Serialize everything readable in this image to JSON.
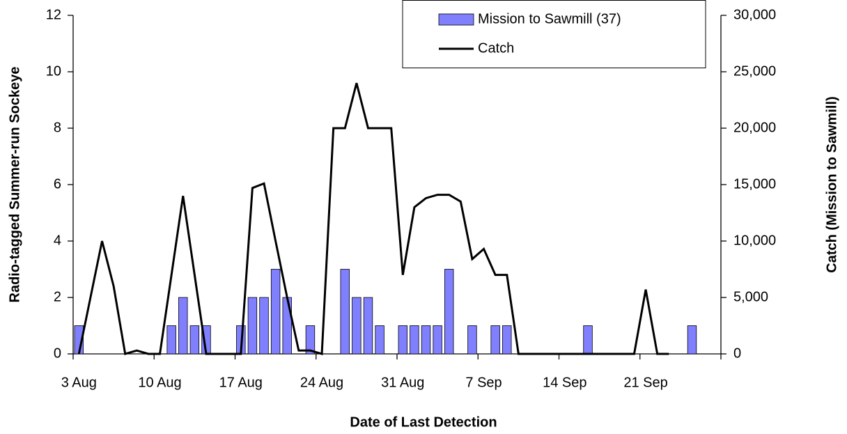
{
  "chart_data": {
    "type": "bar",
    "x_label": "Date of Last Detection",
    "y_label": "Radio-tagged Summer-run Sockeye",
    "y2_label": "Catch (Mission to Sawmill)",
    "categories": [
      "3 Aug",
      null,
      null,
      null,
      null,
      null,
      null,
      "10 Aug",
      null,
      null,
      null,
      null,
      null,
      null,
      "17 Aug",
      null,
      null,
      null,
      null,
      null,
      null,
      "24 Aug",
      null,
      null,
      null,
      null,
      null,
      null,
      "31 Aug",
      null,
      null,
      null,
      null,
      null,
      null,
      "7 Sep",
      null,
      null,
      null,
      null,
      null,
      null,
      "14 Sep",
      null,
      null,
      null,
      null,
      null,
      null,
      "21 Sep",
      null,
      null,
      null,
      null,
      null,
      null
    ],
    "series": [
      {
        "name": "Mission to Sawmill (37)",
        "type": "bar",
        "color": "#8080ff",
        "values": [
          1,
          0,
          0,
          0,
          0,
          0,
          0,
          0,
          1,
          2,
          1,
          1,
          0,
          0,
          1,
          2,
          2,
          3,
          2,
          0,
          1,
          0,
          0,
          3,
          2,
          2,
          1,
          0,
          1,
          1,
          1,
          1,
          3,
          0,
          1,
          0,
          1,
          1,
          0,
          0,
          0,
          0,
          0,
          0,
          1,
          0,
          0,
          0,
          0,
          0,
          0,
          0,
          0,
          1,
          0,
          0
        ]
      },
      {
        "name": "Catch",
        "type": "line",
        "color": "#000000",
        "axis": "y2",
        "values": [
          0,
          5000,
          10000,
          6000,
          0,
          300,
          0,
          0,
          7000,
          14000,
          7000,
          0,
          0,
          0,
          0,
          14700,
          15100,
          10000,
          5000,
          300,
          300,
          0,
          20000,
          20000,
          24000,
          20000,
          20000,
          20000,
          7000,
          13000,
          13800,
          14100,
          14100,
          13500,
          8400,
          9300,
          7000,
          7000,
          0,
          0,
          0,
          0,
          0,
          0,
          0,
          0,
          0,
          0,
          0,
          5700,
          0,
          0,
          null,
          null,
          null,
          null
        ]
      }
    ],
    "ylim": [
      0,
      12
    ],
    "yticks": [
      0,
      2,
      4,
      6,
      8,
      10,
      12
    ],
    "y2lim": [
      0,
      30000
    ],
    "y2ticks": [
      0,
      {
        "value": 5000,
        "label": "5,000"
      },
      {
        "value": 10000,
        "label": "10,000"
      },
      {
        "value": 15000,
        "label": "15,000"
      },
      {
        "value": 20000,
        "label": "20,000"
      },
      {
        "value": 25000,
        "label": "25,000"
      },
      {
        "value": 30000,
        "label": "30,000"
      }
    ],
    "legend": "upper right"
  }
}
